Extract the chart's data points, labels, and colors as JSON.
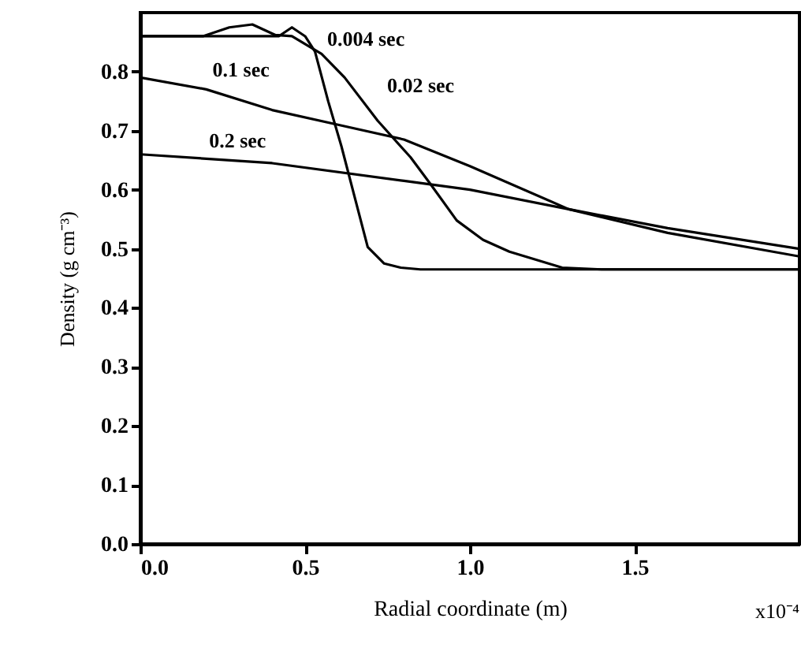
{
  "chart_data": {
    "type": "line",
    "xlabel": "Radial coordinate (m)",
    "ylabel": "Density (g cm⁻³)",
    "annotations": [
      "x10⁻⁴"
    ],
    "xlim": [
      0,
      2
    ],
    "ylim": [
      0,
      0.9
    ],
    "xticks": [
      {
        "value": 0,
        "label": "0.0"
      },
      {
        "value": 0.5,
        "label": "0.5"
      },
      {
        "value": 1,
        "label": "1.0"
      },
      {
        "value": 1.5,
        "label": "1.5"
      }
    ],
    "yticks": [
      {
        "value": 0,
        "label": "0.0"
      },
      {
        "value": 0.1,
        "label": "0.1"
      },
      {
        "value": 0.2,
        "label": "0.2"
      },
      {
        "value": 0.3,
        "label": "0.3"
      },
      {
        "value": 0.4,
        "label": "0.4"
      },
      {
        "value": 0.5,
        "label": "0.5"
      },
      {
        "value": 0.6,
        "label": "0.6"
      },
      {
        "value": 0.7,
        "label": "0.7"
      },
      {
        "value": 0.8,
        "label": "0.8"
      }
    ],
    "grid": false,
    "marker": "none",
    "line_style": "solid",
    "series": [
      {
        "name": "0.004 sec",
        "color": "#000000",
        "x": [
          0,
          0.42,
          0.46,
          0.5,
          0.53,
          0.57,
          0.61,
          0.66,
          0.69,
          0.74,
          0.79,
          0.85,
          2.0
        ],
        "values": [
          0.86,
          0.86,
          0.875,
          0.86,
          0.834,
          0.75,
          0.674,
          0.567,
          0.503,
          0.475,
          0.468,
          0.465,
          0.465
        ]
      },
      {
        "name": "0.02 sec",
        "color": "#000000",
        "x": [
          0,
          0.19,
          0.27,
          0.34,
          0.41,
          0.46,
          0.55,
          0.62,
          0.72,
          0.82,
          0.88,
          0.96,
          1.04,
          1.12,
          1.28,
          1.4,
          2.0
        ],
        "values": [
          0.86,
          0.86,
          0.875,
          0.88,
          0.862,
          0.86,
          0.83,
          0.79,
          0.717,
          0.655,
          0.61,
          0.548,
          0.515,
          0.495,
          0.468,
          0.465,
          0.465
        ]
      },
      {
        "name": "0.1 sec",
        "color": "#000000",
        "x": [
          0,
          0.2,
          0.4,
          0.6,
          0.8,
          1.0,
          1.3,
          1.6,
          2.0
        ],
        "values": [
          0.79,
          0.77,
          0.735,
          0.71,
          0.685,
          0.64,
          0.567,
          0.527,
          0.487
        ]
      },
      {
        "name": "0.2 sec",
        "color": "#000000",
        "x": [
          0,
          0.4,
          0.8,
          1.0,
          1.3,
          1.6,
          2.0
        ],
        "values": [
          0.66,
          0.645,
          0.615,
          0.6,
          0.567,
          0.535,
          0.5
        ]
      }
    ]
  }
}
